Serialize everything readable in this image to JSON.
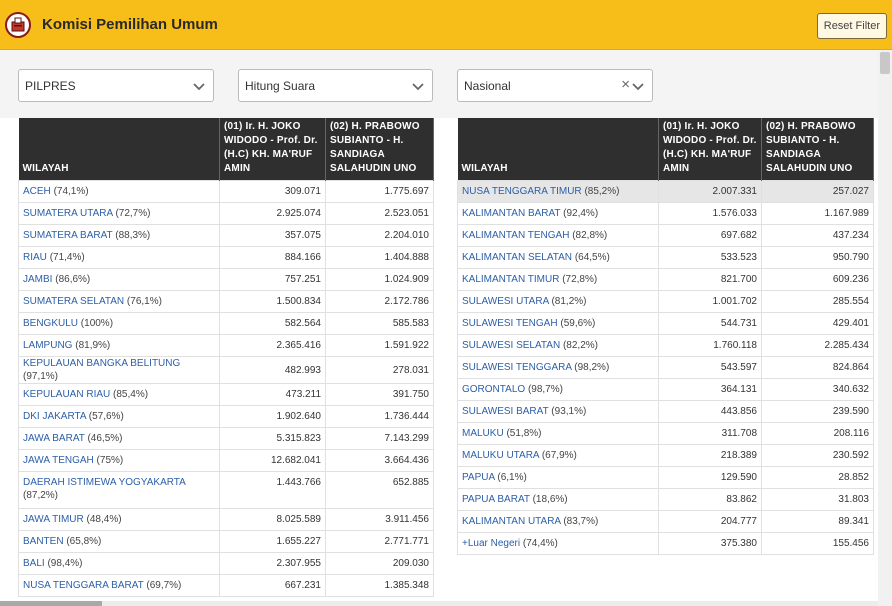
{
  "header": {
    "title": "Komisi Pemilihan Umum",
    "reset_label": "Reset Filter"
  },
  "filters": {
    "election": "PILPRES",
    "mode": "Hitung Suara",
    "scope": "Nasional"
  },
  "columns": {
    "region": "WILAYAH",
    "candidate1": "(01) Ir. H. JOKO WIDODO - Prof. Dr. (H.C) KH. MA'RUF AMIN",
    "candidate2": "(02) H. PRABOWO SUBIANTO - H. SANDIAGA SALAHUDIN UNO"
  },
  "left_rows": [
    {
      "name": "ACEH",
      "pct": "(74,1%)",
      "v1": "309.071",
      "v2": "1.775.697"
    },
    {
      "name": "SUMATERA UTARA",
      "pct": "(72,7%)",
      "v1": "2.925.074",
      "v2": "2.523.051"
    },
    {
      "name": "SUMATERA BARAT",
      "pct": "(88,3%)",
      "v1": "357.075",
      "v2": "2.204.010"
    },
    {
      "name": "RIAU",
      "pct": "(71,4%)",
      "v1": "884.166",
      "v2": "1.404.888"
    },
    {
      "name": "JAMBI",
      "pct": "(86,6%)",
      "v1": "757.251",
      "v2": "1.024.909"
    },
    {
      "name": "SUMATERA SELATAN",
      "pct": "(76,1%)",
      "v1": "1.500.834",
      "v2": "2.172.786"
    },
    {
      "name": "BENGKULU",
      "pct": "(100%)",
      "v1": "582.564",
      "v2": "585.583"
    },
    {
      "name": "LAMPUNG",
      "pct": "(81,9%)",
      "v1": "2.365.416",
      "v2": "1.591.922"
    },
    {
      "name": "KEPULAUAN BANGKA BELITUNG",
      "pct": "(97,1%)",
      "v1": "482.993",
      "v2": "278.031"
    },
    {
      "name": "KEPULAUAN RIAU",
      "pct": "(85,4%)",
      "v1": "473.211",
      "v2": "391.750"
    },
    {
      "name": "DKI JAKARTA",
      "pct": "(57,6%)",
      "v1": "1.902.640",
      "v2": "1.736.444"
    },
    {
      "name": "JAWA BARAT",
      "pct": "(46,5%)",
      "v1": "5.315.823",
      "v2": "7.143.299"
    },
    {
      "name": "JAWA TENGAH",
      "pct": "(75%)",
      "v1": "12.682.041",
      "v2": "3.664.436"
    },
    {
      "name": "DAERAH ISTIMEWA YOGYAKARTA",
      "pct": "(87,2%)",
      "v1": "1.443.766",
      "v2": "652.885"
    },
    {
      "name": "JAWA TIMUR",
      "pct": "(48,4%)",
      "v1": "8.025.589",
      "v2": "3.911.456"
    },
    {
      "name": "BANTEN",
      "pct": "(65,8%)",
      "v1": "1.655.227",
      "v2": "2.771.771"
    },
    {
      "name": "BALI",
      "pct": "(98,4%)",
      "v1": "2.307.955",
      "v2": "209.030"
    },
    {
      "name": "NUSA TENGGARA BARAT",
      "pct": "(69,7%)",
      "v1": "667.231",
      "v2": "1.385.348"
    }
  ],
  "right_rows": [
    {
      "name": "NUSA TENGGARA TIMUR",
      "pct": "(85,2%)",
      "v1": "2.007.331",
      "v2": "257.027"
    },
    {
      "name": "KALIMANTAN BARAT",
      "pct": "(92,4%)",
      "v1": "1.576.033",
      "v2": "1.167.989"
    },
    {
      "name": "KALIMANTAN TENGAH",
      "pct": "(82,8%)",
      "v1": "697.682",
      "v2": "437.234"
    },
    {
      "name": "KALIMANTAN SELATAN",
      "pct": "(64,5%)",
      "v1": "533.523",
      "v2": "950.790"
    },
    {
      "name": "KALIMANTAN TIMUR",
      "pct": "(72,8%)",
      "v1": "821.700",
      "v2": "609.236"
    },
    {
      "name": "SULAWESI UTARA",
      "pct": "(81,2%)",
      "v1": "1.001.702",
      "v2": "285.554"
    },
    {
      "name": "SULAWESI TENGAH",
      "pct": "(59,6%)",
      "v1": "544.731",
      "v2": "429.401"
    },
    {
      "name": "SULAWESI SELATAN",
      "pct": "(82,2%)",
      "v1": "1.760.118",
      "v2": "2.285.434"
    },
    {
      "name": "SULAWESI TENGGARA",
      "pct": "(98,2%)",
      "v1": "543.597",
      "v2": "824.864"
    },
    {
      "name": "GORONTALO",
      "pct": "(98,7%)",
      "v1": "364.131",
      "v2": "340.632"
    },
    {
      "name": "SULAWESI BARAT",
      "pct": "(93,1%)",
      "v1": "443.856",
      "v2": "239.590"
    },
    {
      "name": "MALUKU",
      "pct": "(51,8%)",
      "v1": "311.708",
      "v2": "208.116"
    },
    {
      "name": "MALUKU UTARA",
      "pct": "(67,9%)",
      "v1": "218.389",
      "v2": "230.592"
    },
    {
      "name": "PAPUA",
      "pct": "(6,1%)",
      "v1": "129.590",
      "v2": "28.852"
    },
    {
      "name": "PAPUA BARAT",
      "pct": "(18,6%)",
      "v1": "83.862",
      "v2": "31.803"
    },
    {
      "name": "KALIMANTAN UTARA",
      "pct": "(83,7%)",
      "v1": "204.777",
      "v2": "89.341"
    },
    {
      "name": "+Luar Negeri",
      "pct": "(74,4%)",
      "v1": "375.380",
      "v2": "155.456"
    }
  ],
  "icons": {
    "logo": "kpu-logo",
    "dropdown": "chevron-down-icon",
    "clear": "clear-icon"
  },
  "colors": {
    "header_bg": "#f7bd18",
    "table_header_bg": "#2f2f2f",
    "link": "#2b5fa8"
  }
}
